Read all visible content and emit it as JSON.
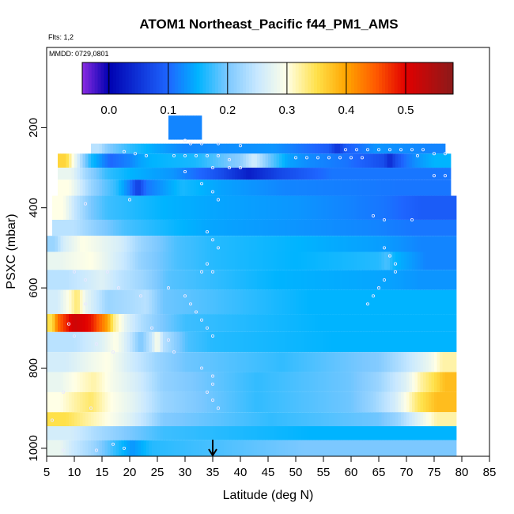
{
  "header": {
    "title": "ATOM1 Northeast_Pacific f44_PM1_AMS",
    "flights_label": "Flts: 1,2",
    "dates_label": "MMDD: 0729,0801"
  },
  "chart_data": {
    "type": "heatmap",
    "title": "ATOM1 Northeast_Pacific f44_PM1_AMS",
    "xlabel": "Latitude (deg N)",
    "ylabel": "PSXC (mbar)",
    "xlim": [
      5,
      85
    ],
    "ylim": [
      1020,
      0
    ],
    "x_ticks": [
      5,
      10,
      15,
      20,
      25,
      30,
      35,
      40,
      45,
      50,
      55,
      60,
      65,
      70,
      75,
      80,
      85
    ],
    "y_ticks": [
      200,
      400,
      600,
      800,
      1000
    ],
    "colorbar": {
      "range": [
        -0.045,
        0.58
      ],
      "ticks": [
        0.0,
        0.1,
        0.2,
        0.3,
        0.4,
        0.5
      ],
      "tick_labels": [
        "0.0",
        "0.1",
        "0.2",
        "0.3",
        "0.4",
        "0.5"
      ],
      "stops": [
        {
          "v": -0.045,
          "color": "#8a2be2"
        },
        {
          "v": 0.0,
          "color": "#0000b0"
        },
        {
          "v": 0.1,
          "color": "#1e66ff"
        },
        {
          "v": 0.15,
          "color": "#00b4ff"
        },
        {
          "v": 0.2,
          "color": "#7cc8ff"
        },
        {
          "v": 0.25,
          "color": "#c8e8ff"
        },
        {
          "v": 0.3,
          "color": "#ffffe6"
        },
        {
          "v": 0.35,
          "color": "#ffe14a"
        },
        {
          "v": 0.4,
          "color": "#ffa500"
        },
        {
          "v": 0.45,
          "color": "#ff5a00"
        },
        {
          "v": 0.5,
          "color": "#e10000"
        },
        {
          "v": 0.58,
          "color": "#8b1a1a"
        }
      ]
    },
    "marker": {
      "latitude": 35,
      "label": "arrow"
    },
    "rows": [
      {
        "p_min": 170,
        "p_max": 230,
        "segments": [
          [
            27,
            33,
            0.12
          ]
        ]
      },
      {
        "p_min": 240,
        "p_max": 265,
        "segments": [
          [
            13,
            16,
            0.24
          ],
          [
            16,
            24,
            0.17
          ],
          [
            24,
            36,
            0.12
          ],
          [
            36,
            56,
            0.13
          ],
          [
            56,
            59,
            0.05
          ],
          [
            59,
            70,
            0.13
          ],
          [
            70,
            77,
            0.12
          ]
        ]
      },
      {
        "p_min": 265,
        "p_max": 300,
        "segments": [
          [
            7,
            10,
            0.36
          ],
          [
            10,
            13,
            0.22
          ],
          [
            13,
            20,
            0.1
          ],
          [
            20,
            24,
            0.14
          ],
          [
            24,
            40,
            0.16
          ],
          [
            40,
            45,
            0.26
          ],
          [
            45,
            52,
            0.14
          ],
          [
            52,
            66,
            0.11
          ],
          [
            66,
            68,
            0.04
          ],
          [
            68,
            72,
            0.11
          ],
          [
            72,
            78,
            0.15
          ]
        ]
      },
      {
        "p_min": 300,
        "p_max": 330,
        "segments": [
          [
            7,
            12,
            0.28
          ],
          [
            12,
            20,
            0.17
          ],
          [
            20,
            36,
            0.13
          ],
          [
            36,
            47,
            0.03
          ],
          [
            47,
            66,
            0.11
          ],
          [
            66,
            78,
            0.11
          ]
        ]
      },
      {
        "p_min": 330,
        "p_max": 370,
        "segments": [
          [
            7,
            11,
            0.3
          ],
          [
            11,
            15,
            0.22
          ],
          [
            15,
            20,
            0.17
          ],
          [
            20,
            23,
            0.06
          ],
          [
            23,
            36,
            0.16
          ],
          [
            36,
            60,
            0.12
          ],
          [
            60,
            78,
            0.11
          ]
        ]
      },
      {
        "p_min": 370,
        "p_max": 430,
        "segments": [
          [
            6,
            10,
            0.3
          ],
          [
            10,
            16,
            0.2
          ],
          [
            16,
            36,
            0.15
          ],
          [
            36,
            66,
            0.13
          ],
          [
            66,
            79,
            0.09
          ]
        ]
      },
      {
        "p_min": 430,
        "p_max": 470,
        "segments": [
          [
            6,
            14,
            0.24
          ],
          [
            14,
            24,
            0.18
          ],
          [
            24,
            35,
            0.15
          ],
          [
            35,
            64,
            0.13
          ],
          [
            64,
            79,
            0.11
          ]
        ]
      },
      {
        "p_min": 470,
        "p_max": 510,
        "segments": [
          [
            5,
            8,
            0.22
          ],
          [
            8,
            15,
            0.3
          ],
          [
            15,
            22,
            0.26
          ],
          [
            22,
            35,
            0.18
          ],
          [
            35,
            66,
            0.15
          ],
          [
            66,
            79,
            0.12
          ]
        ]
      },
      {
        "p_min": 510,
        "p_max": 555,
        "segments": [
          [
            5,
            10,
            0.28
          ],
          [
            10,
            16,
            0.3
          ],
          [
            16,
            22,
            0.25
          ],
          [
            22,
            35,
            0.18
          ],
          [
            35,
            65,
            0.15
          ],
          [
            65,
            68,
            0.18
          ],
          [
            68,
            79,
            0.12
          ]
        ]
      },
      {
        "p_min": 555,
        "p_max": 605,
        "segments": [
          [
            5,
            12,
            0.24
          ],
          [
            12,
            18,
            0.27
          ],
          [
            18,
            27,
            0.22
          ],
          [
            27,
            66,
            0.15
          ],
          [
            66,
            79,
            0.13
          ]
        ]
      },
      {
        "p_min": 605,
        "p_max": 665,
        "segments": [
          [
            5,
            9,
            0.26
          ],
          [
            9,
            12,
            0.34
          ],
          [
            12,
            20,
            0.22
          ],
          [
            20,
            26,
            0.24
          ],
          [
            26,
            79,
            0.15
          ]
        ]
      },
      {
        "p_min": 665,
        "p_max": 710,
        "segments": [
          [
            5,
            7,
            0.35
          ],
          [
            7,
            13,
            0.52
          ],
          [
            13,
            15,
            0.46
          ],
          [
            15,
            17,
            0.4
          ],
          [
            17,
            22,
            0.27
          ],
          [
            22,
            30,
            0.2
          ],
          [
            30,
            79,
            0.15
          ]
        ]
      },
      {
        "p_min": 710,
        "p_max": 760,
        "segments": [
          [
            5,
            15,
            0.24
          ],
          [
            15,
            20,
            0.3
          ],
          [
            20,
            24,
            0.2
          ],
          [
            24,
            26,
            0.3
          ],
          [
            26,
            35,
            0.18
          ],
          [
            35,
            79,
            0.15
          ]
        ]
      },
      {
        "p_min": 760,
        "p_max": 810,
        "segments": [
          [
            5,
            12,
            0.26
          ],
          [
            12,
            20,
            0.3
          ],
          [
            20,
            30,
            0.22
          ],
          [
            30,
            65,
            0.17
          ],
          [
            65,
            74,
            0.24
          ],
          [
            74,
            79,
            0.32
          ]
        ]
      },
      {
        "p_min": 810,
        "p_max": 860,
        "segments": [
          [
            5,
            10,
            0.28
          ],
          [
            10,
            17,
            0.32
          ],
          [
            17,
            26,
            0.26
          ],
          [
            26,
            60,
            0.17
          ],
          [
            60,
            70,
            0.22
          ],
          [
            70,
            75,
            0.32
          ],
          [
            75,
            79,
            0.38
          ]
        ]
      },
      {
        "p_min": 860,
        "p_max": 910,
        "segments": [
          [
            5,
            10,
            0.3
          ],
          [
            10,
            16,
            0.34
          ],
          [
            16,
            26,
            0.27
          ],
          [
            26,
            60,
            0.17
          ],
          [
            60,
            68,
            0.22
          ],
          [
            68,
            72,
            0.3
          ],
          [
            72,
            79,
            0.38
          ]
        ]
      },
      {
        "p_min": 910,
        "p_max": 945,
        "segments": [
          [
            5,
            12,
            0.35
          ],
          [
            12,
            20,
            0.3
          ],
          [
            20,
            26,
            0.24
          ],
          [
            26,
            65,
            0.17
          ],
          [
            65,
            72,
            0.22
          ],
          [
            72,
            79,
            0.32
          ]
        ]
      },
      {
        "p_min": 945,
        "p_max": 980,
        "segments": [
          [
            5,
            14,
            0.26
          ],
          [
            14,
            26,
            0.2
          ],
          [
            26,
            79,
            0.15
          ]
        ]
      },
      {
        "p_min": 980,
        "p_max": 1020,
        "segments": [
          [
            5,
            10,
            0.28
          ],
          [
            10,
            17,
            0.22
          ],
          [
            17,
            24,
            0.13
          ],
          [
            24,
            79,
            0.2
          ]
        ]
      }
    ],
    "data_points": [
      [
        30,
        232
      ],
      [
        31,
        240
      ],
      [
        33,
        240
      ],
      [
        36,
        240
      ],
      [
        40,
        245
      ],
      [
        59,
        255
      ],
      [
        61,
        255
      ],
      [
        63,
        255
      ],
      [
        65,
        255
      ],
      [
        67,
        255
      ],
      [
        69,
        255
      ],
      [
        71,
        255
      ],
      [
        73,
        255
      ],
      [
        28,
        270
      ],
      [
        30,
        270
      ],
      [
        32,
        270
      ],
      [
        34,
        270
      ],
      [
        36,
        270
      ],
      [
        38,
        280
      ],
      [
        50,
        275
      ],
      [
        52,
        275
      ],
      [
        54,
        275
      ],
      [
        56,
        275
      ],
      [
        58,
        275
      ],
      [
        60,
        275
      ],
      [
        62,
        275
      ],
      [
        19,
        260
      ],
      [
        21,
        265
      ],
      [
        23,
        270
      ],
      [
        75,
        265
      ],
      [
        77,
        265
      ],
      [
        72,
        270
      ],
      [
        30,
        310
      ],
      [
        35,
        300
      ],
      [
        38,
        300
      ],
      [
        40,
        300
      ],
      [
        75,
        320
      ],
      [
        77,
        320
      ],
      [
        33,
        340
      ],
      [
        35,
        360
      ],
      [
        36,
        380
      ],
      [
        12,
        390
      ],
      [
        20,
        380
      ],
      [
        64,
        420
      ],
      [
        66,
        430
      ],
      [
        71,
        430
      ],
      [
        34,
        460
      ],
      [
        35,
        480
      ],
      [
        36,
        500
      ],
      [
        34,
        540
      ],
      [
        33,
        560
      ],
      [
        35,
        560
      ],
      [
        66,
        500
      ],
      [
        67,
        520
      ],
      [
        68,
        540
      ],
      [
        68,
        560
      ],
      [
        66,
        580
      ],
      [
        65,
        600
      ],
      [
        64,
        620
      ],
      [
        63,
        640
      ],
      [
        10,
        560
      ],
      [
        12,
        580
      ],
      [
        16,
        560
      ],
      [
        18,
        600
      ],
      [
        22,
        620
      ],
      [
        12,
        640
      ],
      [
        27,
        600
      ],
      [
        30,
        620
      ],
      [
        31,
        640
      ],
      [
        32,
        660
      ],
      [
        33,
        680
      ],
      [
        34,
        700
      ],
      [
        35,
        720
      ],
      [
        9,
        690
      ],
      [
        10,
        720
      ],
      [
        14,
        740
      ],
      [
        17,
        760
      ],
      [
        24,
        700
      ],
      [
        27,
        730
      ],
      [
        28,
        760
      ],
      [
        33,
        800
      ],
      [
        35,
        820
      ],
      [
        35,
        840
      ],
      [
        34,
        860
      ],
      [
        35,
        880
      ],
      [
        36,
        900
      ],
      [
        8,
        860
      ],
      [
        13,
        900
      ],
      [
        6,
        930
      ],
      [
        17,
        990
      ],
      [
        19,
        1000
      ],
      [
        14,
        1005
      ],
      [
        8,
        1005
      ]
    ]
  }
}
